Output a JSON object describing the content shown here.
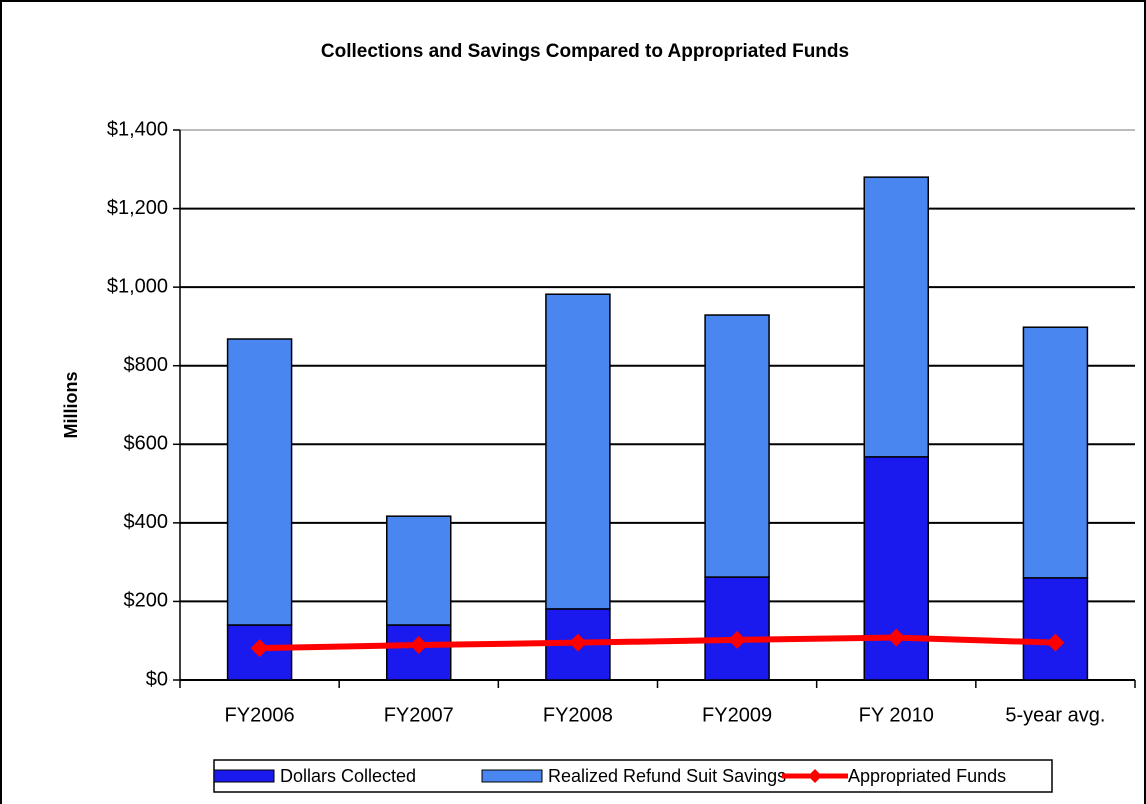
{
  "chart_data": {
    "type": "bar",
    "title": "Collections and Savings Compared to Appropriated Funds",
    "ylabel": "Millions",
    "categories": [
      "FY2006",
      "FY2007",
      "FY2008",
      "FY2009",
      "FY 2010",
      "5-year avg."
    ],
    "series": [
      {
        "name": "Dollars Collected",
        "color": "#1a1aee",
        "type": "bar",
        "values": [
          140,
          140,
          181,
          262,
          568,
          260
        ]
      },
      {
        "name": "Realized Refund Suit Savings",
        "color": "#4a86f0",
        "type": "bar",
        "values": [
          728,
          277,
          801,
          667,
          712,
          638
        ]
      },
      {
        "name": "Appropriated Funds",
        "color": "#ff0000",
        "type": "line",
        "values": [
          81,
          89,
          95,
          102,
          108,
          95
        ]
      }
    ],
    "stacked": true,
    "ylim": [
      0,
      1400
    ],
    "yticks": [
      {
        "value": 0,
        "label": "$0"
      },
      {
        "value": 200,
        "label": "$200"
      },
      {
        "value": 400,
        "label": "$400"
      },
      {
        "value": 600,
        "label": "$600"
      },
      {
        "value": 800,
        "label": "$800"
      },
      {
        "value": 1000,
        "label": "$1,000"
      },
      {
        "value": 1200,
        "label": "$1,200"
      },
      {
        "value": 1400,
        "label": "$1,400"
      }
    ],
    "grid": true,
    "legend": "bottom"
  }
}
